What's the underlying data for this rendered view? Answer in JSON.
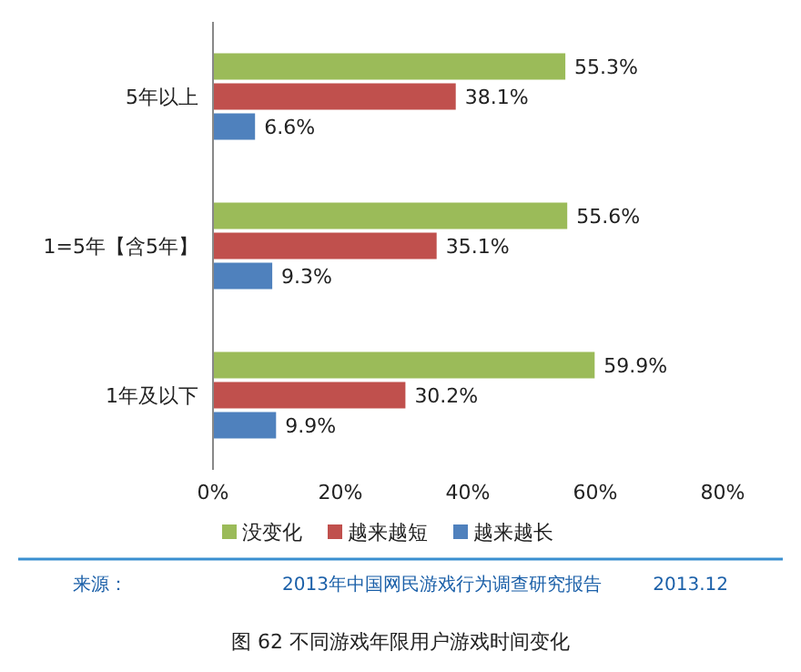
{
  "chart_data": {
    "type": "bar",
    "orientation": "horizontal",
    "categories": [
      "5年以上",
      "1=5年【含5年】",
      "1年及以下"
    ],
    "series": [
      {
        "name": "没变化",
        "color": "#9bbb59",
        "values": [
          55.3,
          55.6,
          59.9
        ],
        "value_labels": [
          "55.3%",
          "55.6%",
          "59.9%"
        ]
      },
      {
        "name": "越来越短",
        "color": "#c0504d",
        "values": [
          38.1,
          35.1,
          30.2
        ],
        "value_labels": [
          "38.1%",
          "35.1%",
          "30.2%"
        ]
      },
      {
        "name": "越来越长",
        "color": "#4f81bd",
        "values": [
          6.6,
          9.3,
          9.9
        ],
        "value_labels": [
          "6.6%",
          "9.3%",
          "9.9%"
        ]
      }
    ],
    "xlim": [
      0,
      80
    ],
    "xticks": [
      {
        "value": 0,
        "label": "0%"
      },
      {
        "value": 20,
        "label": "20%"
      },
      {
        "value": 40,
        "label": "40%"
      },
      {
        "value": 60,
        "label": "60%"
      },
      {
        "value": 80,
        "label": "80%"
      }
    ],
    "legend": "bottom",
    "annotations": [
      "来源：",
      "2013年中国网民游戏行为调查研究报告",
      "2013.12",
      "图 62 不同游戏年限用户游戏时间变化"
    ]
  }
}
